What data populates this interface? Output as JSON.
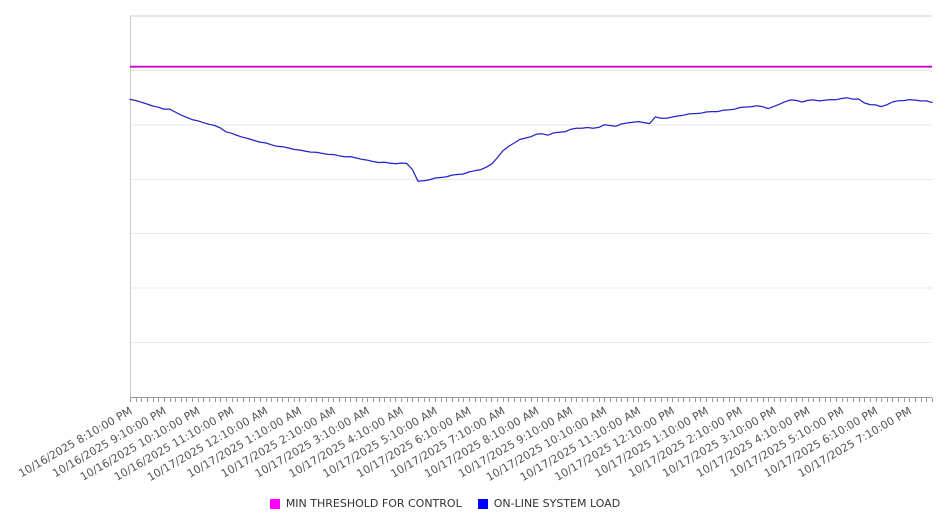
{
  "chart_data": {
    "type": "line",
    "title": "",
    "x_axis": {
      "tick_labels": [
        "10/16/2025 8:10:00 PM",
        "10/16/2025 9:10:00 PM",
        "10/16/2025 10:10:00 PM",
        "10/16/2025 11:10:00 PM",
        "10/17/2025 12:10:00 AM",
        "10/17/2025 1:10:00 AM",
        "10/17/2025 2:10:00 AM",
        "10/17/2025 3:10:00 AM",
        "10/17/2025 4:10:00 AM",
        "10/17/2025 5:10:00 AM",
        "10/17/2025 6:10:00 AM",
        "10/17/2025 7:10:00 AM",
        "10/17/2025 8:10:00 AM",
        "10/17/2025 9:10:00 AM",
        "10/17/2025 10:10:00 AM",
        "10/17/2025 11:10:00 AM",
        "10/17/2025 12:10:00 PM",
        "10/17/2025 1:10:00 PM",
        "10/17/2025 2:10:00 PM",
        "10/17/2025 3:10:00 PM",
        "10/17/2025 4:10:00 PM",
        "10/17/2025 5:10:00 PM",
        "10/17/2025 6:10:00 PM",
        "10/17/2025 7:10:00 PM"
      ],
      "label_interval_minutes": 60,
      "minor_tick_interval_minutes": 10,
      "duration_minutes": 1420,
      "label_rotation_deg": -30
    },
    "y_axis": {
      "labels_shown": false,
      "units": "arbitrary (no y-axis labels visible); values below are percent of plot height",
      "range": [
        0,
        100
      ]
    },
    "grid": {
      "horizontal_divisions": 7,
      "vertical_gridlines": false
    },
    "legend_position": "bottom-center",
    "series": [
      {
        "name": "MIN THRESHOLD FOR CONTROL",
        "type": "constant",
        "value": 86.7,
        "color": "#cc00cc",
        "legend_color": "#ff00ff",
        "stroke_width": 1.8
      },
      {
        "name": "ON-LINE SYSTEM LOAD",
        "type": "line",
        "color": "#2323c8",
        "legend_color": "#0000ff",
        "stroke_width": 1.25,
        "points_format": "[minutes_from_10/16/2025_8:10PM, value_pct]",
        "points": [
          [
            0,
            78.1
          ],
          [
            18,
            77.6
          ],
          [
            35,
            76.5
          ],
          [
            53,
            76.1
          ],
          [
            62,
            75.3
          ],
          [
            71,
            75.6
          ],
          [
            89,
            74.0
          ],
          [
            106,
            73.1
          ],
          [
            124,
            72.2
          ],
          [
            142,
            71.6
          ],
          [
            159,
            70.7
          ],
          [
            168,
            69.8
          ],
          [
            186,
            68.8
          ],
          [
            204,
            68.1
          ],
          [
            212,
            67.6
          ],
          [
            230,
            67.0
          ],
          [
            248,
            66.3
          ],
          [
            266,
            65.7
          ],
          [
            283,
            65.3
          ],
          [
            301,
            64.7
          ],
          [
            319,
            64.4
          ],
          [
            336,
            64.0
          ],
          [
            354,
            63.7
          ],
          [
            372,
            63.3
          ],
          [
            390,
            63.0
          ],
          [
            407,
            62.6
          ],
          [
            425,
            61.9
          ],
          [
            443,
            61.6
          ],
          [
            469,
            61.3
          ],
          [
            492,
            61.3
          ],
          [
            499,
            60.1
          ],
          [
            508,
            56.6
          ],
          [
            519,
            56.7
          ],
          [
            540,
            57.4
          ],
          [
            558,
            57.8
          ],
          [
            575,
            58.3
          ],
          [
            593,
            58.7
          ],
          [
            611,
            59.4
          ],
          [
            628,
            60.0
          ],
          [
            637,
            60.8
          ],
          [
            646,
            61.7
          ],
          [
            655,
            64.0
          ],
          [
            673,
            66.1
          ],
          [
            690,
            67.5
          ],
          [
            708,
            68.3
          ],
          [
            726,
            69.2
          ],
          [
            740,
            68.8
          ],
          [
            752,
            69.3
          ],
          [
            770,
            69.7
          ],
          [
            788,
            70.5
          ],
          [
            806,
            70.7
          ],
          [
            823,
            70.5
          ],
          [
            841,
            71.4
          ],
          [
            859,
            71.1
          ],
          [
            876,
            71.8
          ],
          [
            894,
            72.3
          ],
          [
            912,
            72.0
          ],
          [
            919,
            71.4
          ],
          [
            924,
            73.6
          ],
          [
            942,
            73.1
          ],
          [
            960,
            73.4
          ],
          [
            977,
            74.0
          ],
          [
            995,
            74.3
          ],
          [
            1013,
            74.6
          ],
          [
            1030,
            74.9
          ],
          [
            1048,
            75.1
          ],
          [
            1066,
            75.5
          ],
          [
            1084,
            76.0
          ],
          [
            1101,
            76.3
          ],
          [
            1115,
            76.4
          ],
          [
            1130,
            75.8
          ],
          [
            1146,
            76.4
          ],
          [
            1156,
            77.5
          ],
          [
            1174,
            78.0
          ],
          [
            1191,
            77.5
          ],
          [
            1209,
            78.0
          ],
          [
            1227,
            77.7
          ],
          [
            1245,
            78.2
          ],
          [
            1257,
            78.0
          ],
          [
            1266,
            78.8
          ],
          [
            1275,
            78.2
          ],
          [
            1287,
            78.4
          ],
          [
            1301,
            77.1
          ],
          [
            1319,
            76.6
          ],
          [
            1331,
            76.2
          ],
          [
            1345,
            77.1
          ],
          [
            1358,
            77.7
          ],
          [
            1376,
            78.0
          ],
          [
            1393,
            77.9
          ],
          [
            1408,
            77.7
          ],
          [
            1420,
            77.3
          ]
        ]
      }
    ],
    "colors": {
      "background": "#ffffff",
      "plot_border": "#cccccc",
      "gridline": "#e9e9e9",
      "axis_line": "#999999",
      "tick_mark": "#999999",
      "tick_label_text": "#555555",
      "legend_text": "#333333"
    }
  }
}
